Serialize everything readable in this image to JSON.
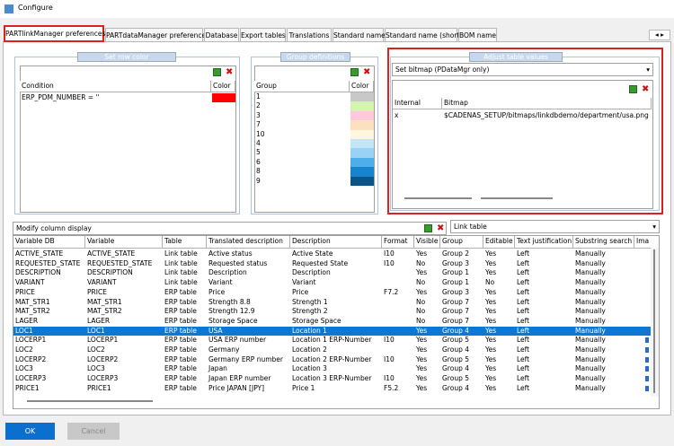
{
  "window": {
    "title": "Configure"
  },
  "tabs": [
    "PARTlinkManager preferences",
    "PARTdataManager preferences",
    "Database",
    "Export tables",
    "Translations",
    "Standard name",
    "Standard name (short)",
    "BOM name"
  ],
  "active_tab": 0,
  "set_row_color": {
    "title": "Set row color",
    "columns": [
      "Condition",
      "Color"
    ],
    "rows": [
      {
        "condition": "ERP_PDM_NUMBER = ''",
        "color": "#ff0000"
      }
    ]
  },
  "group_definitions": {
    "title": "Group definitions",
    "columns": [
      "Group",
      "Color"
    ],
    "rows": [
      {
        "group": "1",
        "color": "#c8c8c8"
      },
      {
        "group": "2",
        "color": "#d4f5b0"
      },
      {
        "group": "3",
        "color": "#ffc8dc"
      },
      {
        "group": "7",
        "color": "#fde0c0"
      },
      {
        "group": "10",
        "color": "#fff6e0"
      },
      {
        "group": "4",
        "color": "#c4e4f8"
      },
      {
        "group": "5",
        "color": "#98d2f4"
      },
      {
        "group": "6",
        "color": "#4eaeea"
      },
      {
        "group": "8",
        "color": "#1784d0"
      },
      {
        "group": "9",
        "color": "#0a5488"
      }
    ]
  },
  "adjust_table_values": {
    "title": "Adjust table values",
    "mode": "Set bitmap (PDataMgr only)",
    "columns": [
      "Internal",
      "Bitmap"
    ],
    "rows": [
      [
        "x",
        "$CADENAS_SETUP/bitmaps/linkdbdemo/department/usa.png"
      ]
    ]
  },
  "column_display": {
    "title": "Modify column display",
    "table_selector": "Link table",
    "columns": [
      "Variable DB",
      "Variable",
      "Table",
      "Translated description",
      "Description",
      "Format",
      "Visible",
      "Group",
      "Editable",
      "Text justification",
      "Substring search",
      "Ima"
    ],
    "rows": [
      [
        "ACTIVE_STATE",
        "ACTIVE_STATE",
        "Link table",
        "Active status",
        "Active State",
        "I10",
        "Yes",
        "Group 2",
        "Yes",
        "Left",
        "Manually"
      ],
      [
        "REQUESTED_STATE",
        "REQUESTED_STATE",
        "Link table",
        "Requested status",
        "Requested State",
        "I10",
        "No",
        "Group 3",
        "Yes",
        "Left",
        "Manually"
      ],
      [
        "DESCRIPTION",
        "DESCRIPTION",
        "Link table",
        "Description",
        "Description",
        null,
        "Yes",
        "Group 1",
        "Yes",
        "Left",
        "Manually"
      ],
      [
        "VARIANT",
        "VARIANT",
        "Link table",
        "Variant",
        "Variant",
        null,
        "No",
        "Group 1",
        "No",
        "Left",
        "Manually"
      ],
      [
        "PRICE",
        "PRICE",
        "ERP table",
        "Price",
        "Price",
        "F7.2",
        "Yes",
        "Group 3",
        "Yes",
        "Left",
        "Manually"
      ],
      [
        "MAT_STR1",
        "MAT_STR1",
        "ERP table",
        "Strength 8.8",
        "Strength 1",
        null,
        "No",
        "Group 7",
        "Yes",
        "Left",
        "Manually"
      ],
      [
        "MAT_STR2",
        "MAT_STR2",
        "ERP table",
        "Strength 12.9",
        "Strength 2",
        null,
        "No",
        "Group 7",
        "Yes",
        "Left",
        "Manually"
      ],
      [
        "LAGER",
        "LAGER",
        "ERP table",
        "Storage Space",
        "Storage Space",
        null,
        "No",
        "Group 7",
        "Yes",
        "Left",
        "Manually"
      ],
      [
        "LOC1",
        "LOC1",
        "ERP table",
        "USA",
        "Location 1",
        null,
        "Yes",
        "Group 4",
        "Yes",
        "Left",
        "Manually"
      ],
      [
        "LOCERP1",
        "LOCERP1",
        "ERP table",
        "USA ERP number",
        "Location 1 ERP-Number",
        "I10",
        "Yes",
        "Group 5",
        "Yes",
        "Left",
        "Manually"
      ],
      [
        "LOC2",
        "LOC2",
        "ERP table",
        "Germany",
        "Location 2",
        null,
        "Yes",
        "Group 4",
        "Yes",
        "Left",
        "Manually"
      ],
      [
        "LOCERP2",
        "LOCERP2",
        "ERP table",
        "Germany ERP number",
        "Location 2 ERP-Number",
        "I10",
        "Yes",
        "Group 5",
        "Yes",
        "Left",
        "Manually"
      ],
      [
        "LOC3",
        "LOC3",
        "ERP table",
        "Japan",
        "Location 3",
        null,
        "Yes",
        "Group 4",
        "Yes",
        "Left",
        "Manually"
      ],
      [
        "LOCERP3",
        "LOCERP3",
        "ERP table",
        "Japan ERP number",
        "Location 3 ERP-Number",
        "I10",
        "Yes",
        "Group 5",
        "Yes",
        "Left",
        "Manually"
      ],
      [
        "PRICE1",
        "PRICE1",
        "ERP table",
        "Price JAPAN [JPY]",
        "Price 1",
        "F5.2",
        "Yes",
        "Group 4",
        "Yes",
        "Left",
        "Manually"
      ]
    ],
    "selected_row": 8
  },
  "buttons": [
    "OK",
    "Cancel"
  ]
}
